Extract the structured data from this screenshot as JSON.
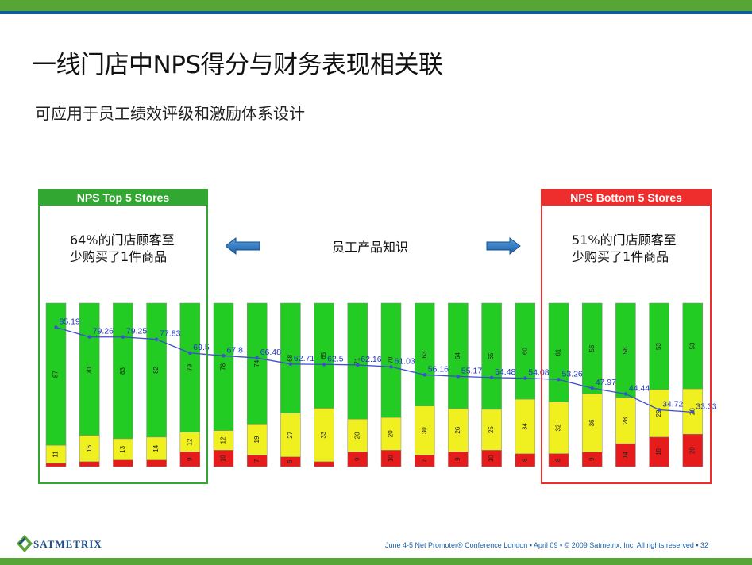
{
  "title": "一线门店中NPS得分与财务表现相关联",
  "subtitle": "可应用于员工绩效评级和激励体系设计",
  "top_box": {
    "header": "NPS Top 5 Stores",
    "note_line1": "64%的门店顾客至",
    "note_line2": "少购买了1件商品"
  },
  "bottom_box": {
    "header": "NPS Bottom 5 Stores",
    "note_line1": "51%的门店顾客至",
    "note_line2": "少购买了1件商品"
  },
  "center_label": "员工产品知识",
  "footer": "June 4-5 Net Promoter® Conference London ▪  April 09   ▪  © 2009 Satmetrix, Inc. All rights reserved   ▪  32",
  "logo": "SATMETRIX",
  "colors": {
    "green": "#22cc22",
    "yellow": "#f0f020",
    "red": "#e61c1c",
    "line": "#3c4fd0",
    "label": "#2233cc"
  },
  "chart_data": {
    "type": "bar",
    "subtype": "stacked-100",
    "stores": 20,
    "series": [
      {
        "name": "red",
        "values": [
          2,
          3,
          4,
          4,
          9,
          10,
          7,
          6,
          3,
          9,
          10,
          7,
          9,
          10,
          8,
          8,
          9,
          14,
          18,
          20
        ]
      },
      {
        "name": "yellow",
        "values": [
          11,
          16,
          13,
          14,
          12,
          12,
          19,
          27,
          33,
          20,
          20,
          30,
          26,
          25,
          34,
          32,
          36,
          28,
          29,
          28
        ]
      },
      {
        "name": "green",
        "values": [
          87,
          81,
          83,
          82,
          79,
          78,
          74,
          68,
          65,
          71,
          70,
          63,
          64,
          65,
          60,
          61,
          56,
          58,
          53,
          53
        ]
      }
    ],
    "nps_line": {
      "name": "NPS",
      "values": [
        85.19,
        79.26,
        79.25,
        77.83,
        69.5,
        67.8,
        66.48,
        62.71,
        62.5,
        62.16,
        61.03,
        56.16,
        55.17,
        54.48,
        54.08,
        53.26,
        47.97,
        44.44,
        34.72,
        33.33
      ],
      "labels": [
        "85.19",
        "79.26",
        "79.25",
        "77.83",
        "69.5",
        "67.8",
        "66.48",
        "62.71",
        "62.5",
        "62.16",
        "61.03",
        "56.16",
        "55.17",
        "54.48",
        "54.08",
        "53.26",
        "47.97",
        "44.44",
        "34.72",
        "33.33"
      ]
    },
    "ylim": [
      0,
      100
    ]
  }
}
